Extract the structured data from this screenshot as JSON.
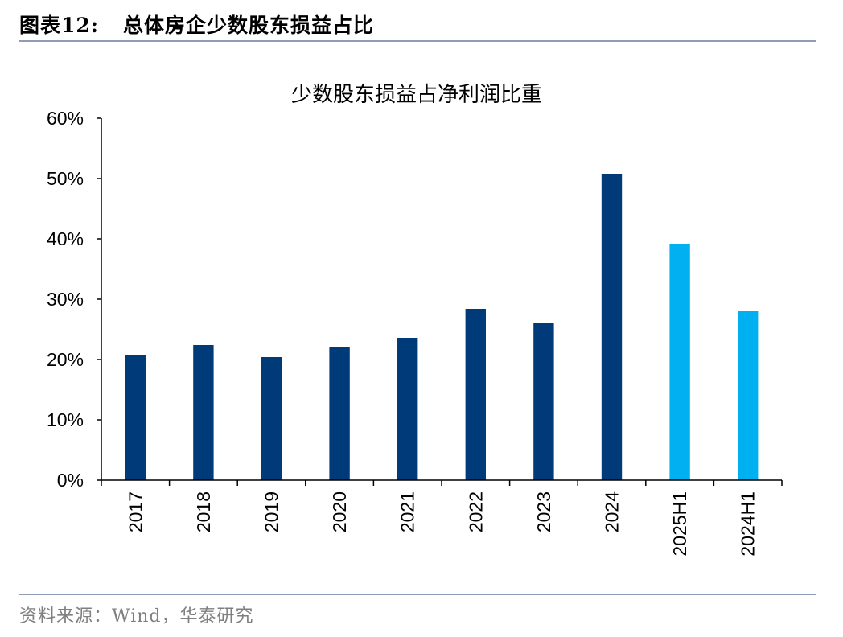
{
  "header": {
    "figure_label": "图表12:",
    "figure_title": "总体房企少数股东损益占比"
  },
  "footer": {
    "source": "资料来源：Wind，华泰研究"
  },
  "colors": {
    "primary_bar": "#003a78",
    "highlight_bar": "#00b0f0",
    "rule": "#8c9db5",
    "source_text": "#7f7f7f"
  },
  "chart_data": {
    "type": "bar",
    "title": "少数股东损益占净利润比重",
    "categories": [
      "2017",
      "2018",
      "2019",
      "2020",
      "2021",
      "2022",
      "2023",
      "2024",
      "2025H1",
      "2024H1"
    ],
    "values": [
      20.8,
      22.4,
      20.4,
      22.0,
      23.6,
      28.4,
      26.0,
      50.8,
      39.2,
      28.0
    ],
    "highlight": [
      false,
      false,
      false,
      false,
      false,
      false,
      false,
      false,
      true,
      true
    ],
    "ylim": [
      0,
      60
    ],
    "yticks": [
      0,
      10,
      20,
      30,
      40,
      50,
      60
    ],
    "ytick_labels": [
      "0%",
      "10%",
      "20%",
      "30%",
      "40%",
      "50%",
      "60%"
    ],
    "xlabel": "",
    "ylabel": "",
    "grid": false,
    "legend": "none"
  }
}
